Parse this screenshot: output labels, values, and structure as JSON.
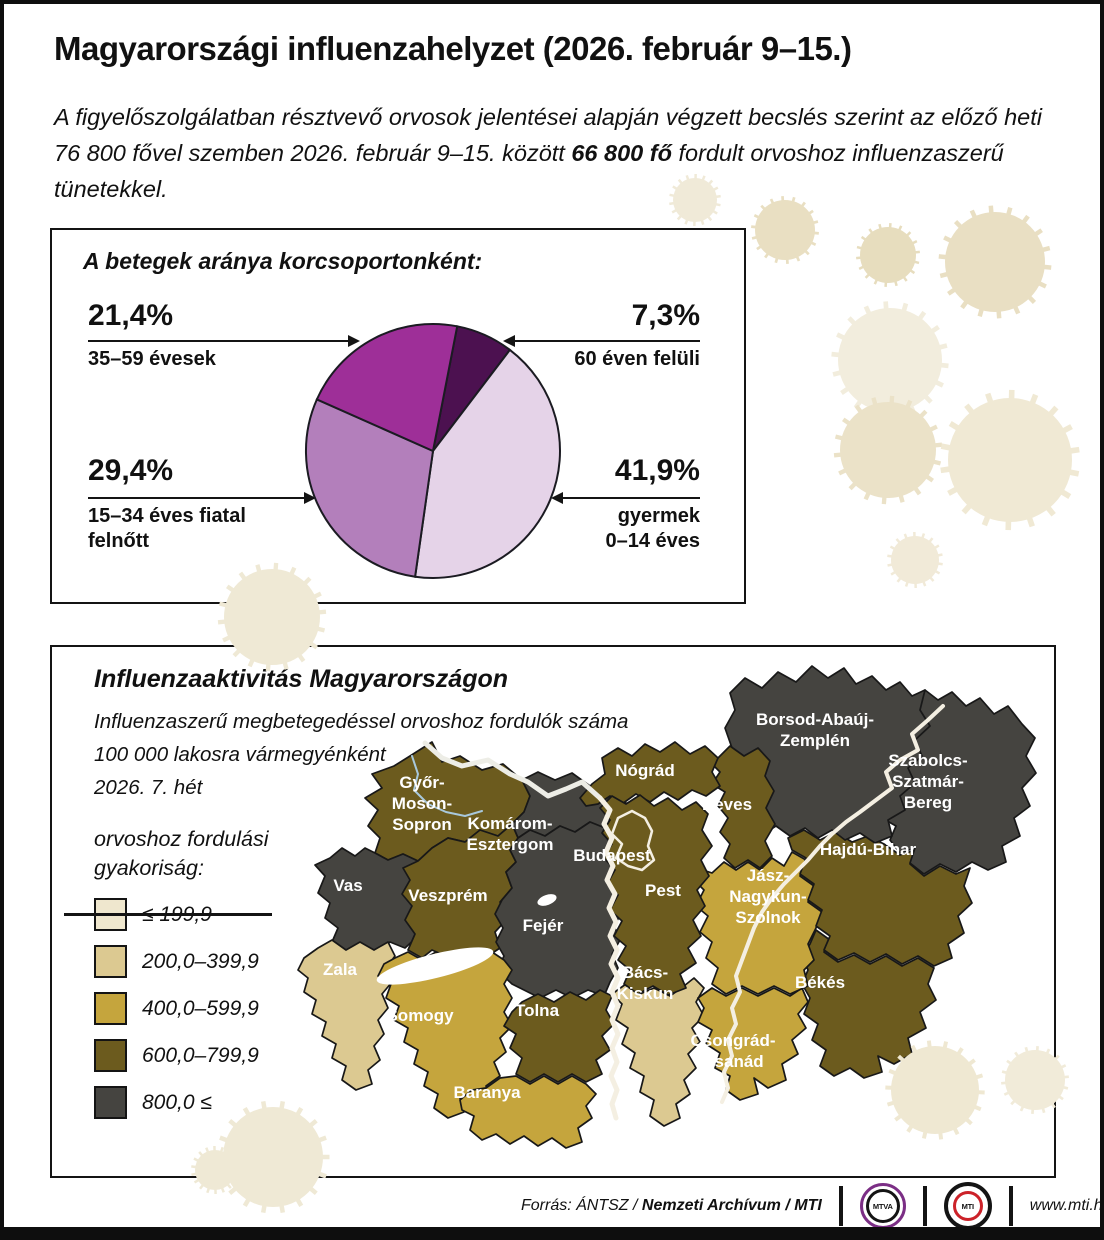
{
  "page": {
    "title": "Magyarországi influenzahelyzet (2026. február 9–15.)",
    "intro": {
      "line1": "A figyelőszolgálatban résztvevő orvosok jelentései alapján végzett becslés szerint az előző heti",
      "line2_pre": "76 800 fővel szemben 2026. február 9–15. között ",
      "line2_bold": "66 800 fő",
      "line2_post": " fordult orvoshoz influenzaszerű",
      "line3": "tünetekkel."
    }
  },
  "pie_section": {
    "heading": "A betegek aránya korcsoportonként:",
    "callouts": {
      "left_top": {
        "pct": "21,4%",
        "label": "35–59 évesek"
      },
      "right_top": {
        "pct": "7,3%",
        "label": "60 éven felüli"
      },
      "left_bottom": {
        "pct": "29,4%",
        "label_line1": "15–34 éves fiatal",
        "label_line2": "felnőtt"
      },
      "right_bottom": {
        "pct": "41,9%",
        "label_line1": "gyermek",
        "label_line2": "0–14 éves"
      }
    }
  },
  "chart_data": [
    {
      "type": "pie",
      "title": "A betegek aránya korcsoportonként:",
      "start_angle_deg": 11,
      "slices": [
        {
          "label": "60 éven felüli",
          "value": 7.3,
          "color": "#4c1150"
        },
        {
          "label": "gyermek 0–14 éves",
          "value": 41.9,
          "color": "#e5d3e8"
        },
        {
          "label": "15–34 éves fiatal felnőtt",
          "value": 29.4,
          "color": "#b37fbb"
        },
        {
          "label": "35–59 évesek",
          "value": 21.4,
          "color": "#9e2f98"
        }
      ]
    },
    {
      "type": "heatmap",
      "title": "Influenzaaktivitás Magyarországon",
      "subtitle": "Influenzaszerű megbetegedéssel orvoshoz fordulók száma 100 000 lakosra vármegyénként, 2026. 7. hét",
      "legend_title": "orvoshoz fordulási gyakoriság:",
      "categories": [
        "≤ 199,9",
        "200,0–399,9",
        "400,0–599,9",
        "600,0–799,9",
        "800,0 ≤"
      ],
      "regions": [
        {
          "id": "gyms",
          "name": "Győr-Moson-Sopron",
          "lines": [
            "Győr-",
            "Moson-",
            "Sopron"
          ],
          "category": 3
        },
        {
          "id": "ke",
          "name": "Komárom-Esztergom",
          "lines": [
            "Komárom-",
            "Esztergom"
          ],
          "category": 4
        },
        {
          "id": "vas",
          "name": "Vas",
          "lines": [
            "Vas"
          ],
          "category": 4
        },
        {
          "id": "veszprem",
          "name": "Veszprém",
          "lines": [
            "Veszprém"
          ],
          "category": 3
        },
        {
          "id": "fejer",
          "name": "Fejér",
          "lines": [
            "Fejér"
          ],
          "category": 4
        },
        {
          "id": "zala",
          "name": "Zala",
          "lines": [
            "Zala"
          ],
          "category": 1
        },
        {
          "id": "somogy",
          "name": "Somogy",
          "lines": [
            "Somogy"
          ],
          "category": 2
        },
        {
          "id": "tolna",
          "name": "Tolna",
          "lines": [
            "Tolna"
          ],
          "category": 3
        },
        {
          "id": "baranya",
          "name": "Baranya",
          "lines": [
            "Baranya"
          ],
          "category": 2
        },
        {
          "id": "bk",
          "name": "Bács-Kiskun",
          "lines": [
            "Bács-",
            "Kiskun"
          ],
          "category": 1
        },
        {
          "id": "cscs",
          "name": "Csongrád-Csanád",
          "lines": [
            "Csongrád-",
            "Csanád"
          ],
          "category": 2
        },
        {
          "id": "bekes",
          "name": "Békés",
          "lines": [
            "Békés"
          ],
          "category": 3
        },
        {
          "id": "jnsz",
          "name": "Jász-Nagykun-Szolnok",
          "lines": [
            "Jász-",
            "Nagykun-",
            "Szolnok"
          ],
          "category": 2
        },
        {
          "id": "hb",
          "name": "Hajdú-Bihar",
          "lines": [
            "Hajdú-Bihar"
          ],
          "category": 3
        },
        {
          "id": "szszb",
          "name": "Szabolcs-Szatmár-Bereg",
          "lines": [
            "Szabolcs-",
            "Szatmár-",
            "Bereg"
          ],
          "category": 4
        },
        {
          "id": "baz",
          "name": "Borsod-Abaúj-Zemplén",
          "lines": [
            "Borsod-Abaúj-",
            "Zemplén"
          ],
          "category": 4
        },
        {
          "id": "heves",
          "name": "Heves",
          "lines": [
            "Heves"
          ],
          "category": 3
        },
        {
          "id": "nograd",
          "name": "Nógrád",
          "lines": [
            "Nógrád"
          ],
          "category": 3
        },
        {
          "id": "pest",
          "name": "Pest",
          "lines": [
            "Pest"
          ],
          "category": 3
        },
        {
          "id": "budapest",
          "name": "Budapest",
          "lines": [
            "Budapest"
          ],
          "category": 3,
          "white_border": true
        }
      ]
    }
  ],
  "map_section": {
    "title": "Influenzaaktivitás Magyarországon",
    "subtitle_line1": "Influenzaszerű megbetegedéssel orvoshoz fordulók száma",
    "subtitle_line2": "100 000 lakosra vármegyénként",
    "subtitle_line3": "2026. 7. hét",
    "legend_heading_line1": "orvoshoz fordulási",
    "legend_heading_line2": "gyakoriság:",
    "legend": [
      {
        "label": "≤ 199,9",
        "color": "#efe7ce",
        "struck": true
      },
      {
        "label": "200,0–399,9",
        "color": "#dcc991"
      },
      {
        "label": "400,0–599,9",
        "color": "#c5a53d"
      },
      {
        "label": "600,0–799,9",
        "color": "#6c5b1e"
      },
      {
        "label": "800,0 ≤",
        "color": "#454440"
      }
    ]
  },
  "footer": {
    "source_italic": "Forrás: ÁNTSZ / ",
    "source_bold": "Nemzeti Archívum / MTI",
    "mtva_label": "MTVA",
    "mti_label": "MTI",
    "url": "www.mti.hu"
  }
}
